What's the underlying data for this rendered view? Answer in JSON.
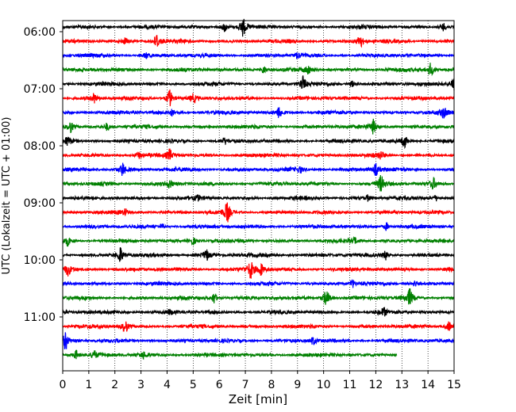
{
  "chart_data": {
    "type": "line",
    "title": "",
    "xlabel": "Zeit  [min]",
    "ylabel": "UTC (Lokalzeit = UTC + 01:00)",
    "xlim": [
      0,
      15
    ],
    "x_ticks": [
      "0",
      "1",
      "2",
      "3",
      "4",
      "5",
      "6",
      "7",
      "8",
      "9",
      "10",
      "11",
      "12",
      "13",
      "14",
      "15"
    ],
    "y_ticks": [
      "06:00",
      "07:00",
      "08:00",
      "09:00",
      "10:00",
      "11:00"
    ],
    "trace_interval_min": 15,
    "grid": "vertical dotted lines at each minute",
    "legend": "none",
    "colors": [
      "#000000",
      "#ff0000",
      "#0000ff",
      "#008000"
    ],
    "traces": [
      {
        "start": "05:55",
        "end_min": 15,
        "bursts": [
          [
            6.9,
            1.0
          ],
          [
            6.2,
            0.5
          ],
          [
            14.6,
            0.4
          ]
        ]
      },
      {
        "start": "06:10",
        "end_min": 15,
        "bursts": [
          [
            3.6,
            0.8
          ],
          [
            11.4,
            0.7
          ],
          [
            2.4,
            0.3
          ]
        ]
      },
      {
        "start": "06:25",
        "end_min": 15,
        "bursts": [
          [
            3.2,
            0.3
          ],
          [
            9.0,
            0.3
          ]
        ]
      },
      {
        "start": "06:40",
        "end_min": 15,
        "bursts": [
          [
            14.1,
            0.7
          ],
          [
            7.7,
            0.4
          ],
          [
            9.4,
            0.4
          ]
        ]
      },
      {
        "start": "06:55",
        "end_min": 15,
        "bursts": [
          [
            9.2,
            0.8
          ],
          [
            15.0,
            1.0
          ],
          [
            11.1,
            0.3
          ]
        ]
      },
      {
        "start": "07:10",
        "end_min": 15,
        "bursts": [
          [
            4.1,
            0.9
          ],
          [
            1.2,
            0.5
          ],
          [
            5.0,
            0.4
          ]
        ]
      },
      {
        "start": "07:25",
        "end_min": 15,
        "bursts": [
          [
            8.3,
            0.6
          ],
          [
            14.6,
            0.5
          ],
          [
            4.2,
            0.3
          ]
        ]
      },
      {
        "start": "07:40",
        "end_min": 15,
        "bursts": [
          [
            0.3,
            0.6
          ],
          [
            11.9,
            0.7
          ],
          [
            1.7,
            0.4
          ]
        ]
      },
      {
        "start": "07:55",
        "end_min": 15,
        "bursts": [
          [
            13.1,
            0.7
          ],
          [
            0.2,
            0.5
          ],
          [
            6.2,
            0.3
          ]
        ]
      },
      {
        "start": "08:10",
        "end_min": 15,
        "bursts": [
          [
            4.1,
            0.6
          ],
          [
            2.9,
            0.3
          ],
          [
            12.2,
            0.4
          ]
        ]
      },
      {
        "start": "08:25",
        "end_min": 15,
        "bursts": [
          [
            2.3,
            0.7
          ],
          [
            12.0,
            0.6
          ],
          [
            9.1,
            0.3
          ]
        ]
      },
      {
        "start": "08:40",
        "end_min": 15,
        "bursts": [
          [
            12.2,
            0.8
          ],
          [
            14.2,
            0.6
          ],
          [
            4.1,
            0.4
          ]
        ]
      },
      {
        "start": "08:55",
        "end_min": 15,
        "bursts": [
          [
            11.7,
            0.3
          ],
          [
            14.3,
            0.3
          ],
          [
            5.2,
            0.2
          ]
        ]
      },
      {
        "start": "09:10",
        "end_min": 15,
        "bursts": [
          [
            6.3,
            1.0
          ],
          [
            2.4,
            0.3
          ]
        ]
      },
      {
        "start": "09:25",
        "end_min": 15,
        "bursts": [
          [
            3.8,
            0.3
          ],
          [
            12.4,
            0.4
          ]
        ]
      },
      {
        "start": "09:40",
        "end_min": 15,
        "bursts": [
          [
            0.2,
            0.5
          ],
          [
            5.0,
            0.4
          ],
          [
            11.2,
            0.3
          ]
        ]
      },
      {
        "start": "09:55",
        "end_min": 15,
        "bursts": [
          [
            2.2,
            0.9
          ],
          [
            5.5,
            0.6
          ],
          [
            12.4,
            0.6
          ]
        ]
      },
      {
        "start": "10:10",
        "end_min": 15,
        "bursts": [
          [
            7.2,
            0.9
          ],
          [
            0.2,
            0.6
          ],
          [
            7.6,
            0.6
          ]
        ]
      },
      {
        "start": "10:25",
        "end_min": 15,
        "bursts": [
          [
            11.1,
            0.4
          ],
          [
            13.5,
            0.3
          ]
        ]
      },
      {
        "start": "10:40",
        "end_min": 15,
        "bursts": [
          [
            10.1,
            1.0
          ],
          [
            13.3,
            0.9
          ],
          [
            5.8,
            0.6
          ]
        ]
      },
      {
        "start": "10:55",
        "end_min": 15,
        "bursts": [
          [
            12.3,
            0.4
          ],
          [
            4.1,
            0.2
          ]
        ]
      },
      {
        "start": "11:10",
        "end_min": 15,
        "bursts": [
          [
            2.4,
            0.7
          ],
          [
            14.8,
            0.5
          ]
        ]
      },
      {
        "start": "11:25",
        "end_min": 15,
        "bursts": [
          [
            0.1,
            1.0
          ],
          [
            9.6,
            0.4
          ]
        ]
      },
      {
        "start": "11:40",
        "end_min": 12.8,
        "bursts": [
          [
            0.5,
            0.5
          ],
          [
            1.2,
            0.4
          ],
          [
            3.1,
            0.3
          ]
        ]
      }
    ]
  }
}
